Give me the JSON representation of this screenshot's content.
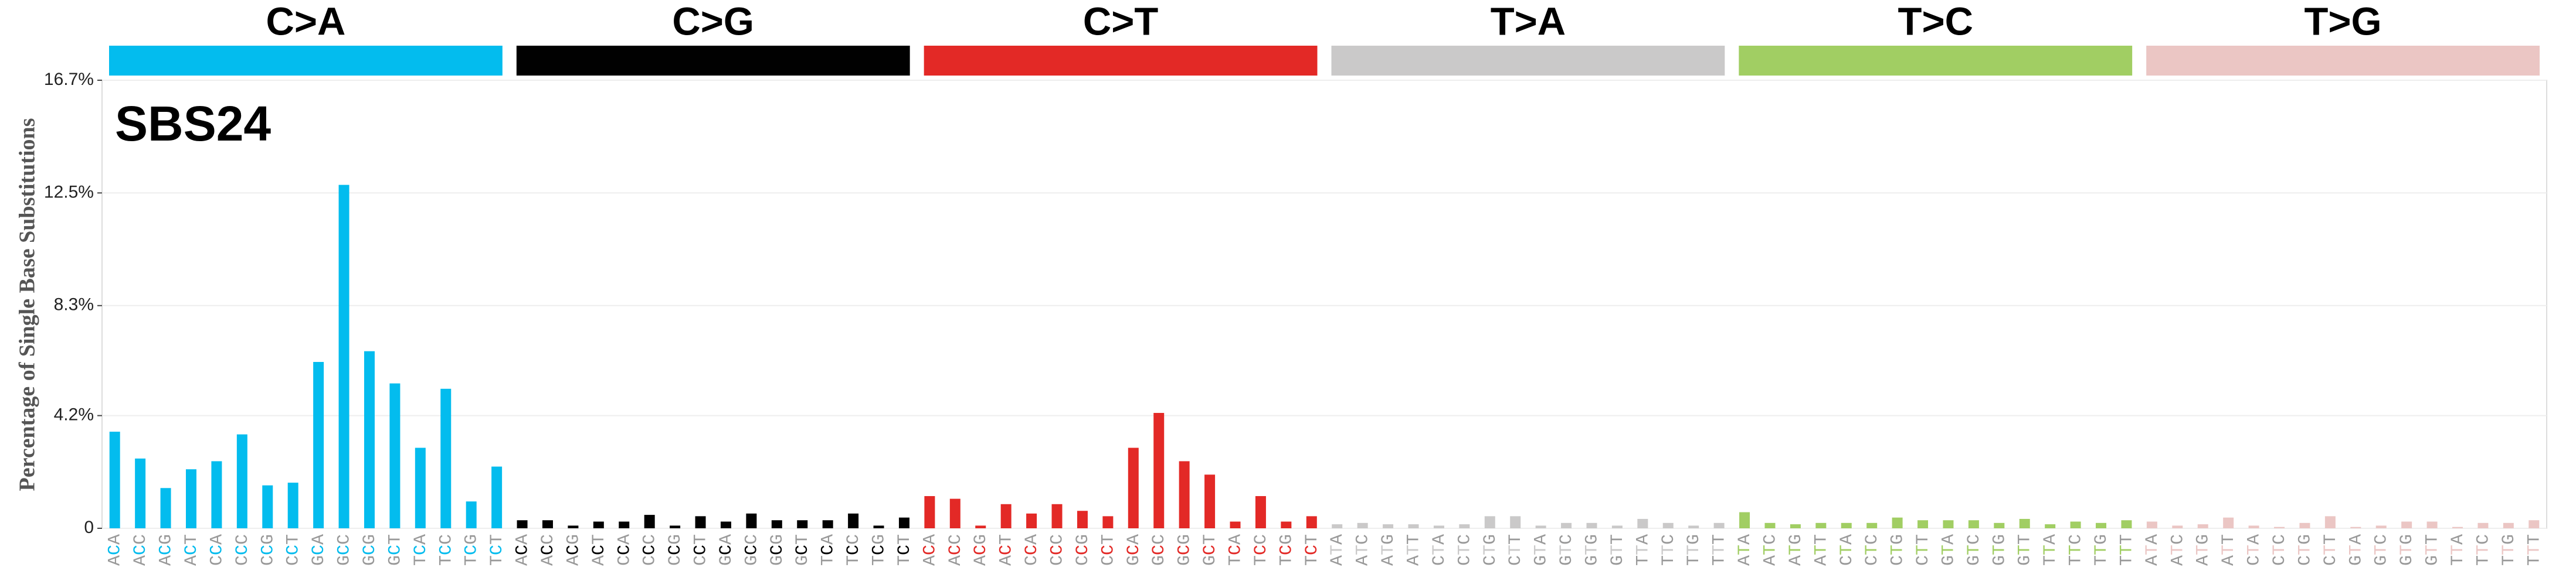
{
  "chart_data": {
    "type": "bar",
    "title": "SBS24",
    "ylabel": "Percentage of Single Base Substitutions",
    "ylim": [
      0,
      16.7
    ],
    "yticks": [
      {
        "value": 0,
        "label": "0"
      },
      {
        "value": 4.2,
        "label": "4.2%"
      },
      {
        "value": 8.3,
        "label": "8.3%"
      },
      {
        "value": 12.5,
        "label": "12.5%"
      },
      {
        "value": 16.7,
        "label": "16.7%"
      }
    ],
    "grid": true,
    "panels": [
      {
        "name": "C>A",
        "color": "#03bcee",
        "categories": [
          "ACA",
          "ACC",
          "ACG",
          "ACT",
          "CCA",
          "CCC",
          "CCG",
          "CCT",
          "GCA",
          "GCC",
          "GCG",
          "GCT",
          "TCA",
          "TCC",
          "TCG",
          "TCT"
        ],
        "values": [
          3.6,
          2.6,
          1.5,
          2.2,
          2.5,
          3.5,
          1.6,
          1.7,
          6.2,
          12.8,
          6.6,
          5.4,
          3.0,
          5.2,
          1.0,
          2.3
        ]
      },
      {
        "name": "C>G",
        "color": "#010101",
        "categories": [
          "ACA",
          "ACC",
          "ACG",
          "ACT",
          "CCA",
          "CCC",
          "CCG",
          "CCT",
          "GCA",
          "GCC",
          "GCG",
          "GCT",
          "TCA",
          "TCC",
          "TCG",
          "TCT"
        ],
        "values": [
          0.3,
          0.3,
          0.1,
          0.25,
          0.25,
          0.5,
          0.1,
          0.45,
          0.25,
          0.55,
          0.3,
          0.3,
          0.3,
          0.55,
          0.1,
          0.4
        ]
      },
      {
        "name": "C>T",
        "color": "#e32926",
        "categories": [
          "ACA",
          "ACC",
          "ACG",
          "ACT",
          "CCA",
          "CCC",
          "CCG",
          "CCT",
          "GCA",
          "GCC",
          "GCG",
          "GCT",
          "TCA",
          "TCC",
          "TCG",
          "TCT"
        ],
        "values": [
          1.2,
          1.1,
          0.1,
          0.9,
          0.55,
          0.9,
          0.65,
          0.45,
          3.0,
          4.3,
          2.5,
          2.0,
          0.25,
          1.2,
          0.25,
          0.45
        ]
      },
      {
        "name": "T>A",
        "color": "#cac9c9",
        "categories": [
          "ATA",
          "ATC",
          "ATG",
          "ATT",
          "CTA",
          "CTC",
          "CTG",
          "CTT",
          "GTA",
          "GTC",
          "GTG",
          "GTT",
          "TTA",
          "TTC",
          "TTG",
          "TTT"
        ],
        "values": [
          0.15,
          0.2,
          0.15,
          0.15,
          0.1,
          0.15,
          0.45,
          0.45,
          0.1,
          0.2,
          0.2,
          0.1,
          0.35,
          0.2,
          0.1,
          0.2
        ]
      },
      {
        "name": "T>C",
        "color": "#a1ce63",
        "categories": [
          "ATA",
          "ATC",
          "ATG",
          "ATT",
          "CTA",
          "CTC",
          "CTG",
          "CTT",
          "GTA",
          "GTC",
          "GTG",
          "GTT",
          "TTA",
          "TTC",
          "TTG",
          "TTT"
        ],
        "values": [
          0.6,
          0.2,
          0.15,
          0.2,
          0.2,
          0.2,
          0.4,
          0.3,
          0.3,
          0.3,
          0.2,
          0.35,
          0.15,
          0.25,
          0.2,
          0.3
        ]
      },
      {
        "name": "T>G",
        "color": "#ebc6c4",
        "categories": [
          "ATA",
          "ATC",
          "ATG",
          "ATT",
          "CTA",
          "CTC",
          "CTG",
          "CTT",
          "GTA",
          "GTC",
          "GTG",
          "GTT",
          "TTA",
          "TTC",
          "TTG",
          "TTT"
        ],
        "values": [
          0.25,
          0.1,
          0.15,
          0.4,
          0.1,
          0.05,
          0.2,
          0.45,
          0.05,
          0.1,
          0.25,
          0.25,
          0.05,
          0.2,
          0.2,
          0.3
        ]
      }
    ]
  }
}
